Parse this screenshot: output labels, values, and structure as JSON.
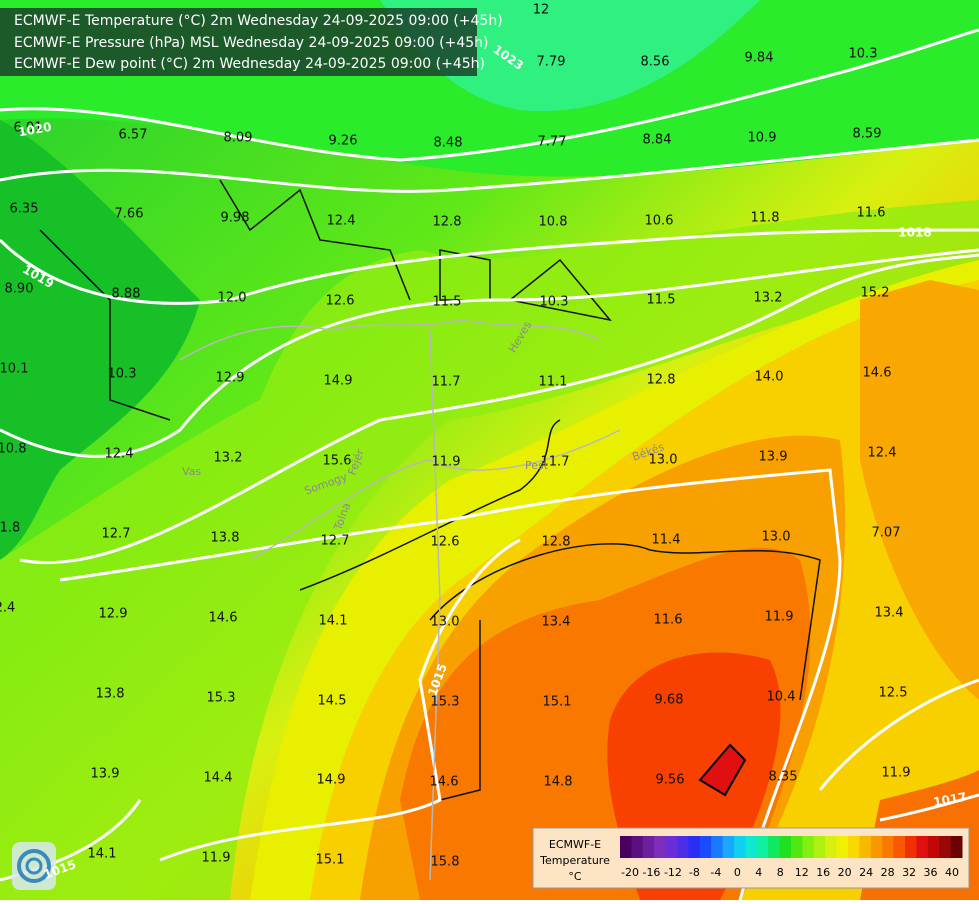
{
  "header": {
    "lines": [
      "ECMWF-E Temperature (°C) 2m Wednesday 24-09-2025 09:00 (+45h)",
      "ECMWF-E Pressure (hPa) MSL Wednesday 24-09-2025 09:00 (+45h)",
      "ECMWF-E Dew point (°C) 2m Wednesday 24-09-2025 09:00 (+45h)"
    ]
  },
  "labels": {
    "dewpoint": [
      "12",
      "7.79",
      "8.56",
      "9.84",
      "10.3",
      "6.01",
      "6.57",
      "8.09",
      "9.26",
      "8.48",
      "7.77",
      "8.84",
      "10.9",
      "8.59",
      "6.35",
      "7.66",
      "9.98",
      "12.4",
      "12.8",
      "10.8",
      "10.6",
      "11.8",
      "11.6",
      "8.90",
      "8.88",
      "12.0",
      "12.6",
      "11.5",
      "10.3",
      "11.5",
      "13.2",
      "15.2",
      "10.1",
      "10.3",
      "12.9",
      "14.9",
      "11.7",
      "11.1",
      "12.8",
      "14.0",
      "14.6",
      "10.8",
      "12.4",
      "13.2",
      "15.6",
      "11.9",
      "11.7",
      "13.0",
      "13.9",
      "12.4",
      "1.8",
      "12.7",
      "13.8",
      "12.7",
      "12.6",
      "12.8",
      "11.4",
      "13.0",
      "7.07",
      "2.4",
      "12.9",
      "14.6",
      "14.1",
      "13.0",
      "13.4",
      "11.6",
      "11.9",
      "13.4",
      "13.8",
      "15.3",
      "14.5",
      "15.3",
      "15.1",
      "9.68",
      "10.4",
      "12.5",
      "13.9",
      "14.4",
      "14.9",
      "14.6",
      "14.8",
      "9.56",
      "8.35",
      "11.9",
      "14.1",
      "11.9",
      "15.1",
      "15.8"
    ],
    "isobars": [
      "1023",
      "1020",
      "1019",
      "1018",
      "1015",
      "1015",
      "1017"
    ],
    "regions": [
      "Vas",
      "Somogy",
      "Fejér",
      "Tolna",
      "Heves",
      "Pest",
      "Békés"
    ]
  },
  "legend": {
    "title": [
      "ECMWF-E",
      "Temperature",
      "°C"
    ],
    "ticks": [
      -20,
      -16,
      -12,
      -8,
      -4,
      0,
      4,
      8,
      12,
      16,
      20,
      24,
      28,
      32,
      36,
      40
    ],
    "colors": [
      "#4b0060",
      "#5c0f80",
      "#6d1f9e",
      "#7d2fbc",
      "#6a2ed8",
      "#4a2ee8",
      "#2a2ef5",
      "#1a4cff",
      "#1a7aff",
      "#1aa8ff",
      "#10d0f0",
      "#10e8d0",
      "#10f0a0",
      "#10e860",
      "#20e020",
      "#50e810",
      "#80f010",
      "#b0f010",
      "#d8f010",
      "#f0f000",
      "#f8d800",
      "#f8b800",
      "#f89800",
      "#f87800",
      "#f85800",
      "#f03000",
      "#e01010",
      "#c00808",
      "#980808",
      "#6a0404"
    ]
  }
}
